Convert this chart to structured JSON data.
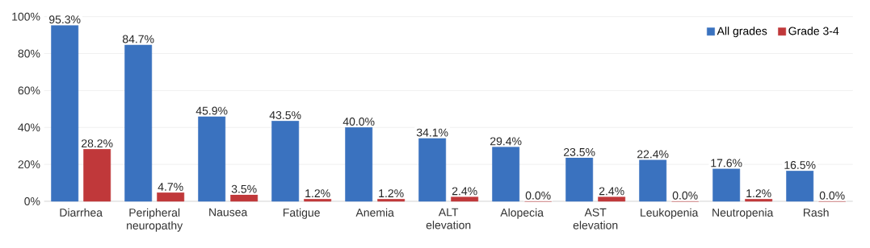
{
  "chart_data": {
    "type": "bar",
    "categories": [
      "Diarrhea",
      "Peripheral neuropathy",
      "Nausea",
      "Fatigue",
      "Anemia",
      "ALT elevation",
      "Alopecia",
      "AST elevation",
      "Leukopenia",
      "Neutropenia",
      "Rash"
    ],
    "series": [
      {
        "name": "All grades",
        "color": "#3a72bf",
        "values": [
          95.3,
          84.7,
          45.9,
          43.5,
          40.0,
          34.1,
          29.4,
          23.5,
          22.4,
          17.6,
          16.5
        ],
        "value_labels": [
          "95.3%",
          "84.7%",
          "45.9%",
          "43.5%",
          "40.0%",
          "34.1%",
          "29.4%",
          "23.5%",
          "22.4%",
          "17.6%",
          "16.5%"
        ]
      },
      {
        "name": "Grade 3-4",
        "color": "#c0383a",
        "values": [
          28.2,
          4.7,
          3.5,
          1.2,
          1.2,
          2.4,
          0.0,
          2.4,
          0.0,
          1.2,
          0.0
        ],
        "value_labels": [
          "28.2%",
          "4.7%",
          "3.5%",
          "1.2%",
          "1.2%",
          "2.4%",
          "0.0%",
          "2.4%",
          "0.0%",
          "1.2%",
          "0.0%"
        ]
      }
    ],
    "ylim": [
      0,
      100
    ],
    "yticks": [
      {
        "value": 0,
        "label": "0%"
      },
      {
        "value": 20,
        "label": "20%"
      },
      {
        "value": 40,
        "label": "40%"
      },
      {
        "value": 60,
        "label": "60%"
      },
      {
        "value": 80,
        "label": "80%"
      },
      {
        "value": 100,
        "label": "100%"
      }
    ],
    "grid": "y",
    "legend": "top right"
  }
}
